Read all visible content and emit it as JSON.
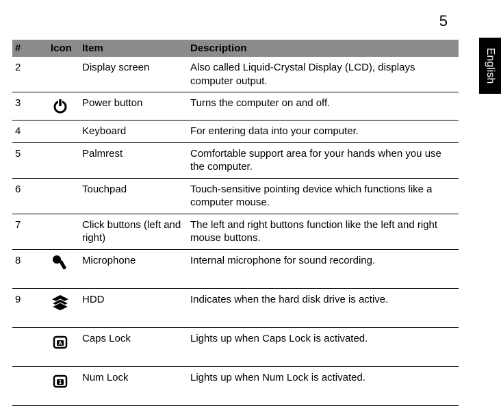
{
  "page_number": "5",
  "side_tab": "English",
  "header": {
    "num": "#",
    "icon": "Icon",
    "item": "Item",
    "description": "Description"
  },
  "rows": [
    {
      "num": "2",
      "icon": "",
      "item": "Display screen",
      "description": "Also called Liquid-Crystal Display (LCD), displays computer output."
    },
    {
      "num": "3",
      "icon": "power",
      "item": "Power button",
      "description": "Turns the computer on and off."
    },
    {
      "num": "4",
      "icon": "",
      "item": "Keyboard",
      "description": "For entering data into your computer."
    },
    {
      "num": "5",
      "icon": "",
      "item": "Palmrest",
      "description": "Comfortable support area for your hands when you use the computer."
    },
    {
      "num": "6",
      "icon": "",
      "item": "Touchpad",
      "description": "Touch-sensitive pointing device which functions like a computer mouse."
    },
    {
      "num": "7",
      "icon": "",
      "item": "Click buttons (left and right)",
      "description": "The left and right buttons function like the left and right mouse buttons."
    },
    {
      "num": "8",
      "icon": "mic",
      "item": "Microphone",
      "description": "Internal microphone for sound recording."
    },
    {
      "num": "9",
      "icon": "hdd",
      "item": "HDD",
      "description": "Indicates when the hard disk drive is active."
    },
    {
      "num": "",
      "icon": "capslock",
      "item": "Caps Lock",
      "description": "Lights up when Caps Lock is activated."
    },
    {
      "num": "",
      "icon": "numlock",
      "item": "Num Lock",
      "description": "Lights up when Num Lock is activated."
    }
  ],
  "styling": {
    "header_bg": "#8b8b8b",
    "text_color": "#000000",
    "border_color": "#000000",
    "tab_bg": "#000000",
    "tab_fg": "#ffffff",
    "font_size_body": 15,
    "font_size_pagenum": 22
  }
}
